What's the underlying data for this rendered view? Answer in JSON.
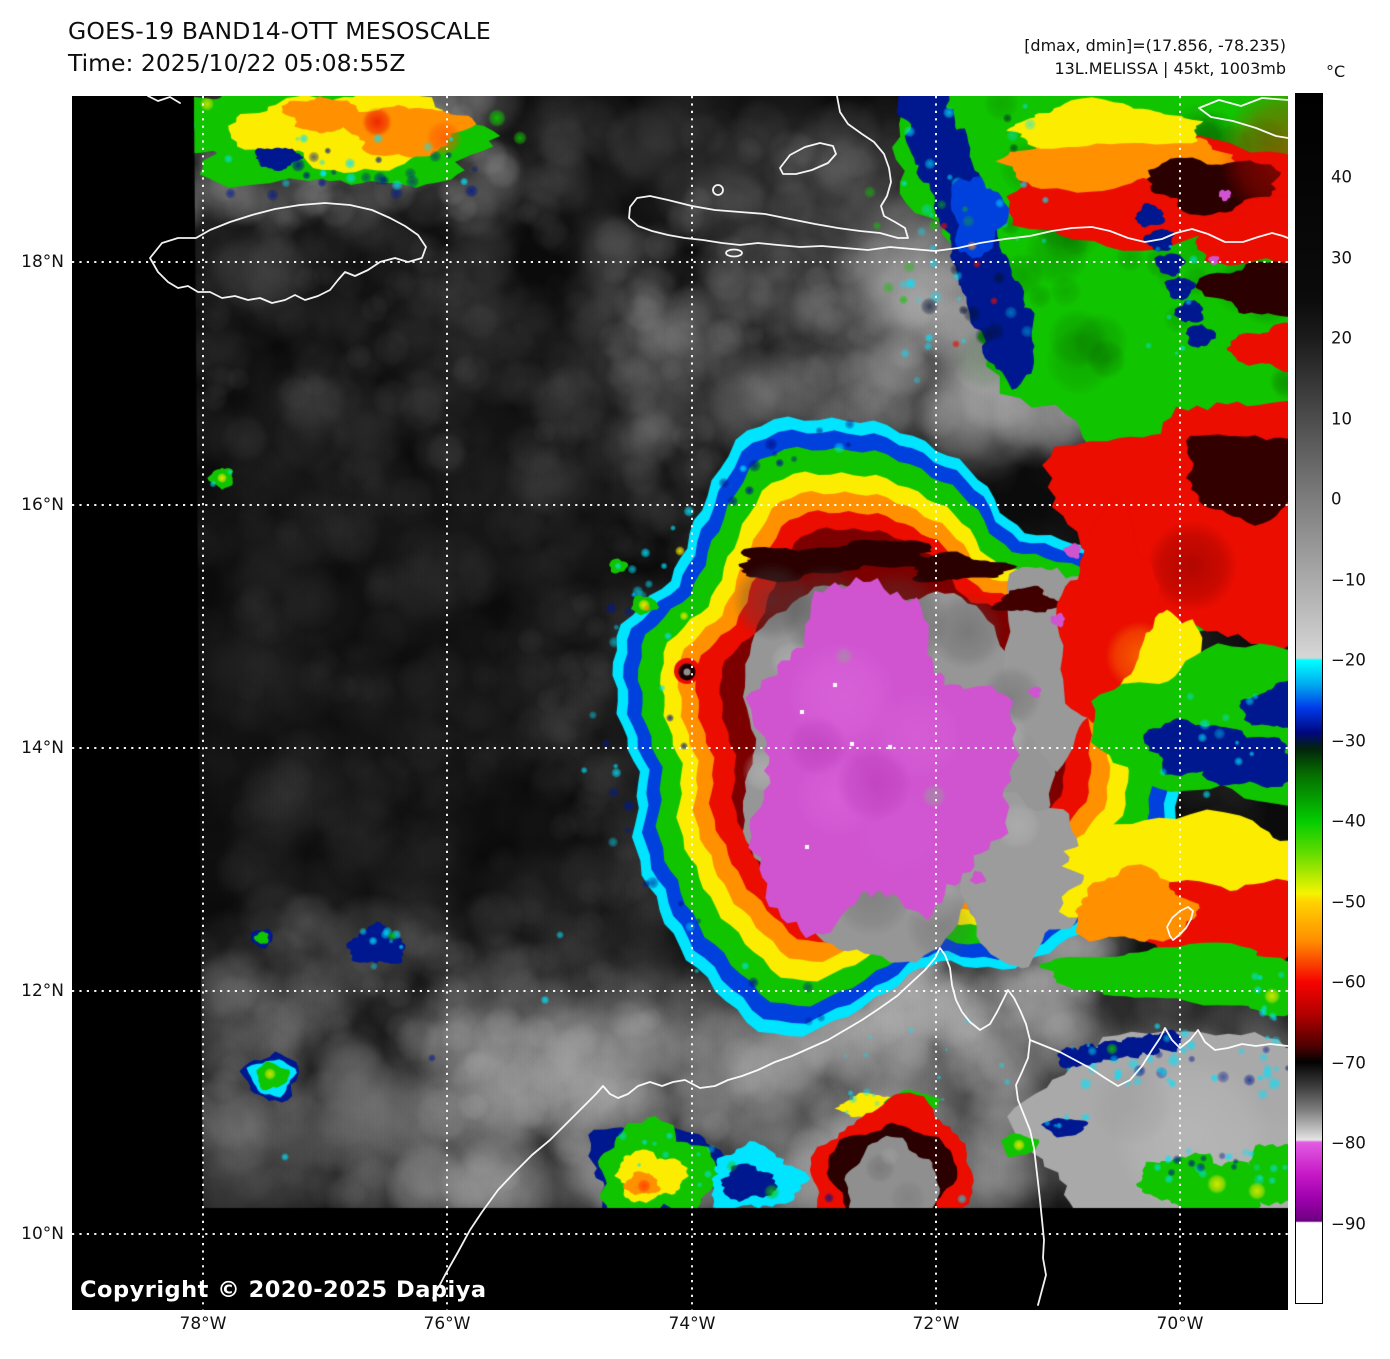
{
  "header": {
    "title": "GOES-19 BAND14-OTT MESOSCALE",
    "subtitle": "Time: 2025/10/22 05:08:55Z",
    "info_line1": "[dmax, dmin]=(17.856, -78.235)",
    "info_line2": "13L.MELISSA | 45kt, 1003mb"
  },
  "map": {
    "copyright": "Copyright © 2020-2025 Dapiya",
    "lat_ticks": [
      "18°N",
      "16°N",
      "14°N",
      "12°N",
      "10°N"
    ],
    "lon_ticks": [
      "78°W",
      "76°W",
      "74°W",
      "72°W",
      "70°W"
    ]
  },
  "colorbar": {
    "unit": "°C",
    "tick_labels": [
      "40",
      "30",
      "20",
      "10",
      "0",
      "−10",
      "−20",
      "−30",
      "−40",
      "−50",
      "−60",
      "−70",
      "−80",
      "−90"
    ],
    "tick_values": [
      40,
      30,
      20,
      10,
      0,
      -10,
      -20,
      -30,
      -40,
      -50,
      -60,
      -70,
      -80,
      -90
    ],
    "domain": [
      50.5,
      -100
    ],
    "stops": [
      [
        50.5,
        "#000000"
      ],
      [
        25,
        "#0b0b0b"
      ],
      [
        20,
        "#1c1c1c"
      ],
      [
        0,
        "#7d7d7d"
      ],
      [
        -19.7,
        "#d6d6d6"
      ],
      [
        -20,
        "#00ffff"
      ],
      [
        -23,
        "#00aaf0"
      ],
      [
        -26,
        "#0038e8"
      ],
      [
        -29,
        "#00077e"
      ],
      [
        -31,
        "#03230c"
      ],
      [
        -34,
        "#056a00"
      ],
      [
        -40,
        "#03cc00"
      ],
      [
        -44,
        "#63dc00"
      ],
      [
        -49,
        "#f4f400"
      ],
      [
        -50,
        "#ffd400"
      ],
      [
        -55,
        "#ff8c00"
      ],
      [
        -60,
        "#f60400"
      ],
      [
        -64,
        "#b40000"
      ],
      [
        -68,
        "#4e0000"
      ],
      [
        -70,
        "#030303"
      ],
      [
        -73,
        "#3c3c3c"
      ],
      [
        -76,
        "#7e7e7e"
      ],
      [
        -79.7,
        "#e4e4e4"
      ],
      [
        -80,
        "#e25ce2"
      ],
      [
        -84,
        "#c618c6"
      ],
      [
        -87,
        "#9e00ad"
      ],
      [
        -89.8,
        "#6c0080"
      ],
      [
        -90,
        "#ffffff"
      ],
      [
        -100,
        "#ffffff"
      ]
    ]
  },
  "palette": {
    "black": "#000000",
    "cloud_gray": "#9a9a9a",
    "cyan": "#00e4ff",
    "blue": "#0040dd",
    "navy": "#00188f",
    "green": "#11c400",
    "dark_green": "#075400",
    "yellow": "#fced00",
    "orange": "#ff9100",
    "red": "#ea0d00",
    "dark_red": "#7d0000",
    "maroon": "#2a0000",
    "magenta": "#d054d0",
    "magenta_deep": "#a827a8",
    "white": "#ffffff"
  }
}
